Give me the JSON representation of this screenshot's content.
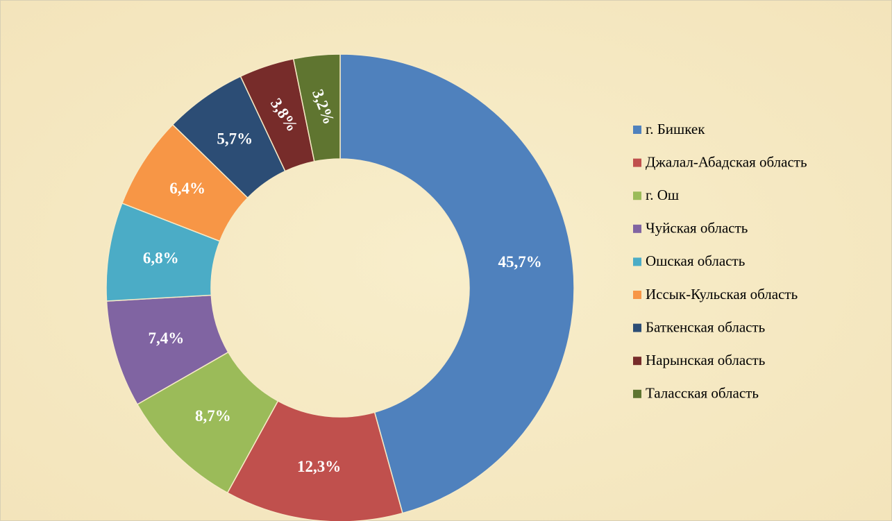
{
  "chart_data": {
    "type": "donut",
    "categories": [
      "г. Бишкек",
      "Джалал-Абадская область",
      "г. Ош",
      "Чуйская область",
      "Ошская область",
      "Иссык-Кульская область",
      "Баткенская область",
      "Нарынская область",
      "Таласская область"
    ],
    "values": [
      45.7,
      12.3,
      8.7,
      7.4,
      6.8,
      6.4,
      5.7,
      3.8,
      3.2
    ],
    "value_labels": [
      "45,7%",
      "12,3%",
      "8,7%",
      "7,4%",
      "6,8%",
      "6,4%",
      "5,7%",
      "3,8%",
      "3,2%"
    ],
    "colors": [
      "#4f81bd",
      "#c0504d",
      "#9bbb59",
      "#8064a2",
      "#4bacc6",
      "#f79646",
      "#2c4d75",
      "#772c2a",
      "#5f7530"
    ],
    "legend": "right"
  }
}
